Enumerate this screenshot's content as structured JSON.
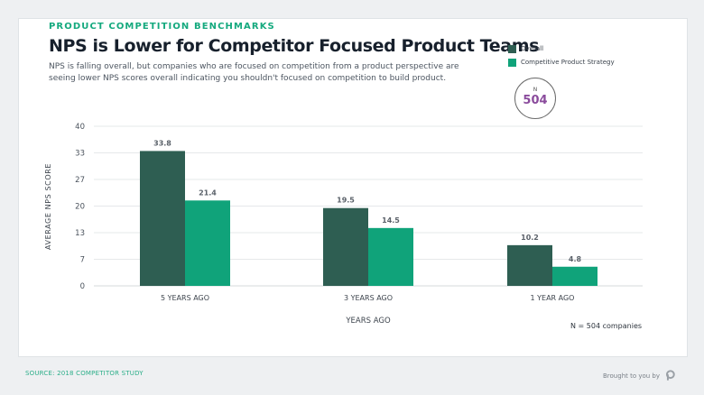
{
  "header": {
    "eyebrow": "PRODUCT COMPETITION BENCHMARKS",
    "title": "NPS is Lower for Competitor Focused Product Teams",
    "subtitle": "NPS is falling overall, but companies who are focused on competition from a product perspective are seeing lower NPS scores overall indicating you shouldn't focused on competition to build product."
  },
  "badge": {
    "letter": "N",
    "value": "504"
  },
  "note": "N = 504 companies",
  "footer": {
    "source": "SOURCE: 2018 COMPETITOR STUDY",
    "brought": "Brought to you by",
    "logo_icon": "brand-logo-icon"
  },
  "colors": {
    "overall": "#2e5e52",
    "competitive": "#10a37a",
    "accent": "#14a97e",
    "badge": "#8a4b9c"
  },
  "chart_data": {
    "type": "bar",
    "categories": [
      "5 YEARS AGO",
      "3 YEARS AGO",
      "1 YEAR AGO"
    ],
    "series": [
      {
        "name": "Overall",
        "values": [
          33.8,
          19.5,
          10.2
        ],
        "labels": [
          "33.8",
          "19.5",
          "10.2"
        ]
      },
      {
        "name": "Competitive Product Strategy",
        "values": [
          21.4,
          14.5,
          4.8
        ],
        "labels": [
          "21.4",
          "14.5",
          "4.8"
        ]
      }
    ],
    "xlabel": "YEARS AGO",
    "ylabel": "AVERAGE NPS SCORE",
    "yticks": [
      0,
      6.67,
      13.33,
      20,
      26.67,
      33.33,
      40
    ],
    "ytick_labels": [
      "0",
      "7",
      "13",
      "20",
      "27",
      "33",
      "40"
    ],
    "ylim": [
      0,
      40
    ],
    "grid": true,
    "legend": "top-right"
  }
}
